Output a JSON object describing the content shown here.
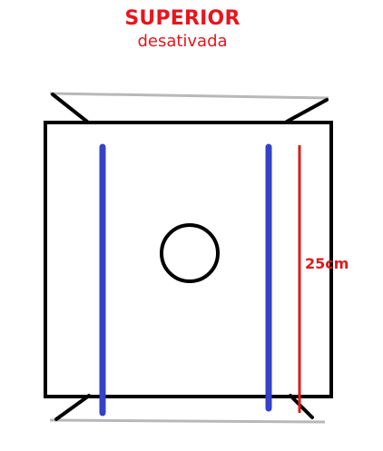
{
  "header": {
    "title": "SUPERIOR",
    "subtitle": "desativada"
  },
  "measurement": {
    "label": "25cm"
  },
  "colors": {
    "title": "#e8141c",
    "frame": "#000000",
    "blue_lines": "#3442c8",
    "red_line": "#dc1c1c",
    "grey_edge": "#b8b8b8"
  }
}
